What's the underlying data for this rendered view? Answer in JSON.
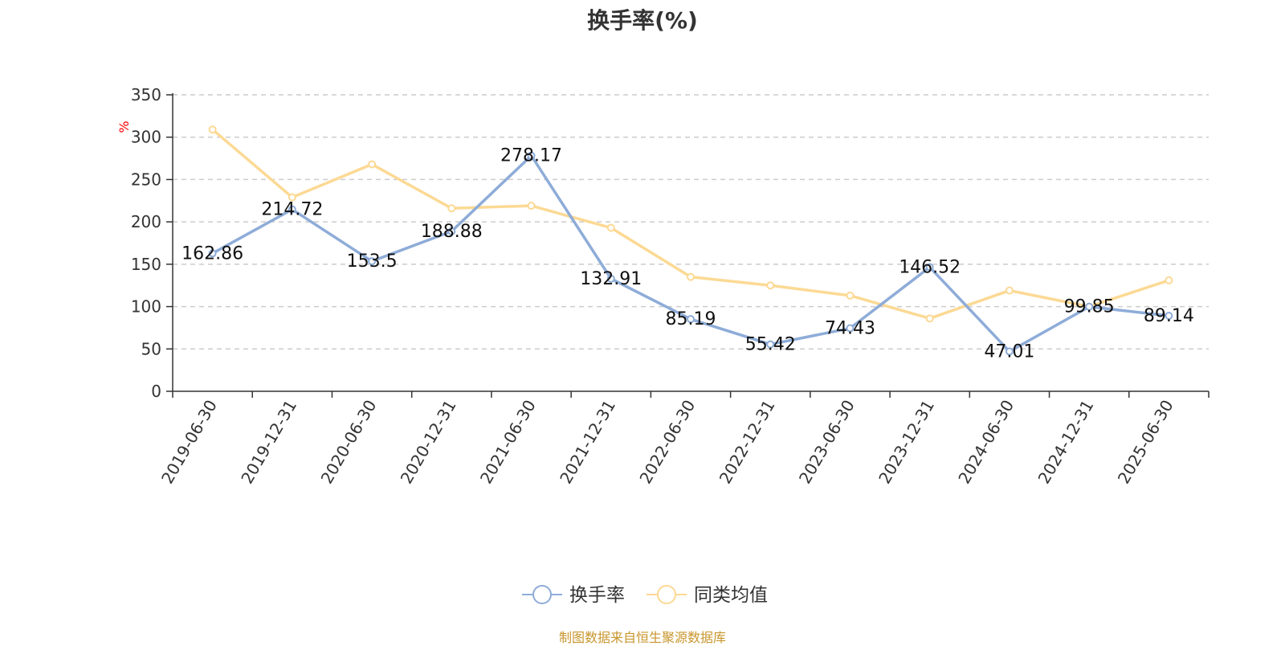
{
  "chart_data": {
    "type": "line",
    "title": "换手率(%)",
    "ylabel": "%",
    "xlabel": "",
    "ylim": [
      0,
      350
    ],
    "yticks": [
      0,
      50,
      100,
      150,
      200,
      250,
      300,
      350
    ],
    "grid": true,
    "legend_position": "bottom-center",
    "categories": [
      "2019-06-30",
      "2019-12-31",
      "2020-06-30",
      "2020-12-31",
      "2021-06-30",
      "2021-12-31",
      "2022-06-30",
      "2022-12-31",
      "2023-06-30",
      "2023-12-31",
      "2024-06-30",
      "2024-12-31",
      "2025-06-30"
    ],
    "series": [
      {
        "name": "换手率",
        "color": "#8eacd8",
        "show_labels": true,
        "values": [
          162.86,
          214.72,
          153.5,
          188.88,
          278.17,
          132.91,
          85.19,
          55.42,
          74.43,
          146.52,
          47.01,
          99.85,
          89.14
        ]
      },
      {
        "name": "同类均值",
        "color": "#fcd994",
        "show_labels": false,
        "values": [
          309,
          229,
          268,
          216,
          219,
          193,
          135,
          125,
          113,
          86,
          119,
          100,
          131
        ]
      }
    ],
    "axis_color": "#333333",
    "ylabel_color": "#ff0000",
    "grid_color": "#cccccc"
  },
  "footer": {
    "source": "制图数据来自恒生聚源数据库"
  }
}
